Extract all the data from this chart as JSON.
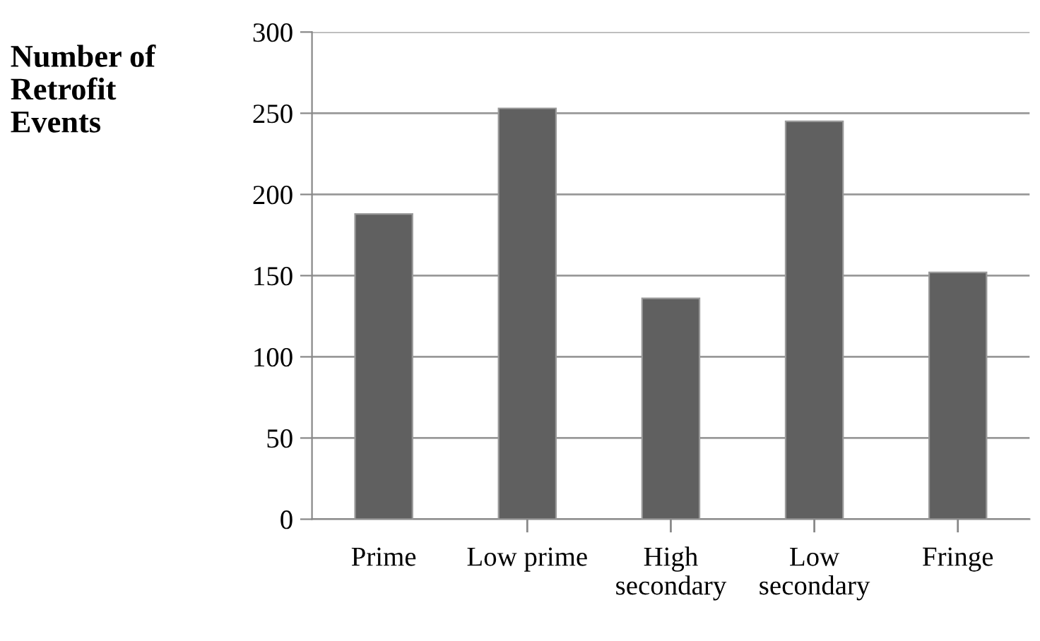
{
  "chart_data": {
    "type": "bar",
    "ylabel": "Number of\nRetrofit\nEvents",
    "categories": [
      "Prime",
      "Low prime",
      "High\nsecondary",
      "Low\nsecondary",
      "Fringe"
    ],
    "values": [
      188,
      253,
      136,
      245,
      152
    ],
    "color": "#606060",
    "ylim": [
      0,
      300
    ],
    "yticks": [
      0,
      50,
      100,
      150,
      200,
      250,
      300
    ],
    "grid": "y"
  }
}
